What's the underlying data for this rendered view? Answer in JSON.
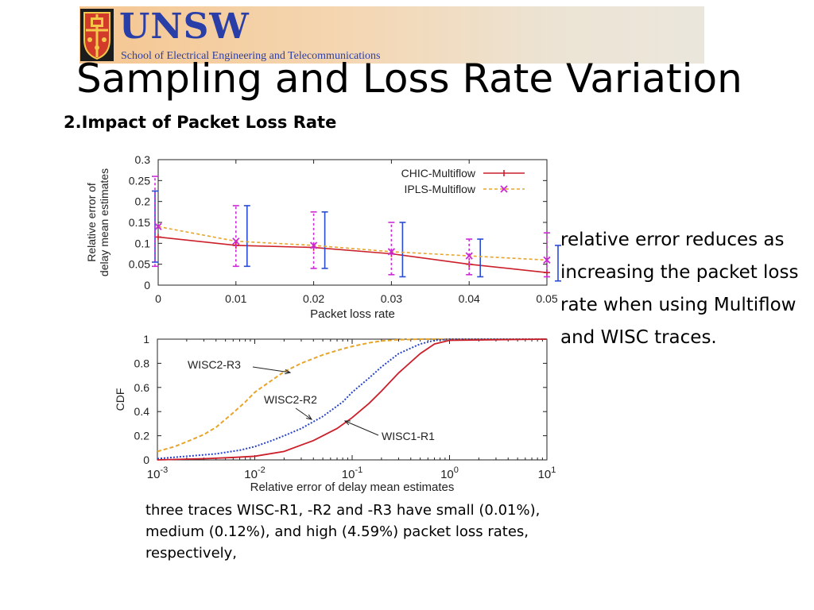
{
  "header": {
    "logo_text": "UNSW",
    "school": "School of Electrical Engineering and Telecommunications"
  },
  "slide": {
    "title": "Sampling and Loss Rate Variation",
    "subtitle": "2.Impact of Packet Loss Rate",
    "right_note": "relative error reduces as increasing the packet loss rate when using Multiflow and WISC traces.",
    "bottom_note": "three traces WISC-R1, -R2 and -R3 have small (0.01%), medium (0.12%), and high (4.59%) packet loss rates, respectively,"
  },
  "colors": {
    "series_red": "#cc1f2a",
    "series_orange": "#e6a52c",
    "series_blue": "#2844c8",
    "errorbar_blue": "#2a4bd6",
    "errorbar_magenta": "#cc2ad6",
    "banner_start": "#f5c690",
    "banner_end": "#ebe6dc",
    "logo_blue": "#2a3ea8"
  },
  "chart_data": [
    {
      "type": "line",
      "xlabel": "Packet loss rate",
      "ylabel": "Relative error of delay mean estimates",
      "xlim": [
        0,
        0.05
      ],
      "ylim": [
        0,
        0.3
      ],
      "xticks": [
        "0",
        "0.01",
        "0.02",
        "0.03",
        "0.04",
        "0.05"
      ],
      "yticks": [
        "0",
        "0.05",
        "0.1",
        "0.15",
        "0.2",
        "0.25",
        "0.3"
      ],
      "legend_position": "top-right",
      "x": [
        0,
        0.01,
        0.02,
        0.03,
        0.04,
        0.05
      ],
      "series": [
        {
          "name": "CHIC-Multiflow",
          "style": "solid",
          "values": [
            0.115,
            0.095,
            0.09,
            0.075,
            0.05,
            0.03
          ],
          "err_low": [
            0.055,
            0.045,
            0.04,
            0.02,
            0.02,
            0.01
          ],
          "err_high": [
            0.225,
            0.19,
            0.175,
            0.15,
            0.11,
            0.095
          ]
        },
        {
          "name": "IPLS-Multiflow",
          "style": "dashed",
          "marker": "x",
          "values": [
            0.14,
            0.105,
            0.095,
            0.08,
            0.07,
            0.06
          ],
          "err_low": [
            0.045,
            0.045,
            0.04,
            0.025,
            0.025,
            0.02
          ],
          "err_high": [
            0.26,
            0.19,
            0.175,
            0.15,
            0.11,
            0.125
          ]
        }
      ]
    },
    {
      "type": "line",
      "xlabel": "Relative error of delay mean estimates",
      "ylabel": "CDF",
      "xscale": "log",
      "xlim": [
        0.001,
        10
      ],
      "ylim": [
        0,
        1
      ],
      "xticks": [
        "10-3",
        "10-2",
        "10-1",
        "100",
        "101"
      ],
      "yticks": [
        "0",
        "0.2",
        "0.4",
        "0.6",
        "0.8",
        "1"
      ],
      "annotations": [
        "WISC2-R3",
        "WISC2-R2",
        "WISC1-R1"
      ],
      "series": [
        {
          "name": "WISC2-R3",
          "style": "dashed",
          "x": [
            0.001,
            0.0015,
            0.002,
            0.003,
            0.004,
            0.006,
            0.008,
            0.01,
            0.015,
            0.02,
            0.03,
            0.05,
            0.08,
            0.1,
            0.15,
            0.2,
            0.3,
            0.5,
            1,
            10
          ],
          "y": [
            0.07,
            0.11,
            0.15,
            0.21,
            0.27,
            0.39,
            0.48,
            0.56,
            0.66,
            0.73,
            0.8,
            0.87,
            0.92,
            0.94,
            0.97,
            0.985,
            0.995,
            1,
            1,
            1
          ]
        },
        {
          "name": "WISC2-R2",
          "style": "dotted",
          "x": [
            0.001,
            0.002,
            0.004,
            0.007,
            0.01,
            0.015,
            0.02,
            0.03,
            0.05,
            0.08,
            0.1,
            0.15,
            0.2,
            0.3,
            0.5,
            0.7,
            1,
            10
          ],
          "y": [
            0.01,
            0.03,
            0.05,
            0.08,
            0.11,
            0.16,
            0.2,
            0.26,
            0.36,
            0.48,
            0.56,
            0.68,
            0.77,
            0.88,
            0.96,
            0.99,
            1,
            1
          ]
        },
        {
          "name": "WISC1-R1",
          "style": "solid",
          "x": [
            0.001,
            0.003,
            0.006,
            0.01,
            0.02,
            0.04,
            0.07,
            0.1,
            0.15,
            0.2,
            0.3,
            0.5,
            0.7,
            1,
            10
          ],
          "y": [
            0,
            0.01,
            0.02,
            0.03,
            0.07,
            0.16,
            0.26,
            0.35,
            0.47,
            0.57,
            0.72,
            0.88,
            0.96,
            0.99,
            1
          ]
        }
      ]
    }
  ]
}
